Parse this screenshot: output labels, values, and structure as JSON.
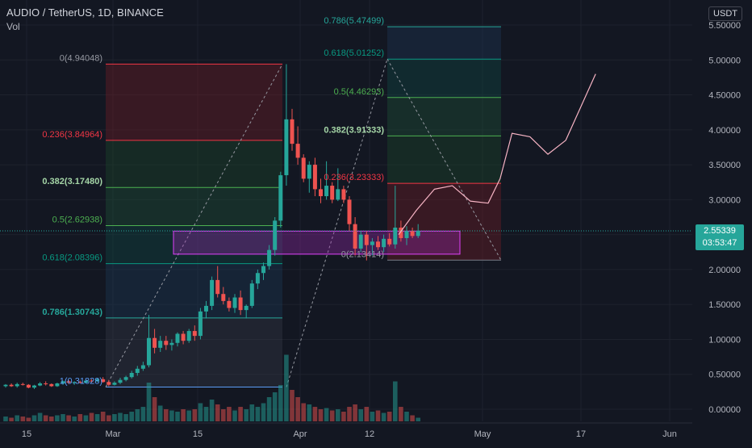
{
  "header": {
    "symbol": "AUDIO / TetherUS, 1D, BINANCE",
    "indicator": "Vol"
  },
  "price_axis": {
    "currency": "USDT",
    "last_price": "2.55339",
    "countdown": "03:53:47"
  },
  "colors": {
    "background": "#131722",
    "up": "#26a69a",
    "down": "#ef5350",
    "grid": "#1e222d",
    "fib_red": "#f23645",
    "fib_green": "#4caf50",
    "fib_teal": "#089981",
    "fib_blue": "#2962ff",
    "rect_pink": "#9c27b0"
  },
  "chart_data": {
    "type": "candlestick",
    "y_ticks": [
      "0.00000",
      "0.50000",
      "1.00000",
      "1.50000",
      "2.00000",
      "2.50000",
      "3.00000",
      "3.50000",
      "4.00000",
      "4.50000",
      "5.00000",
      "5.50000"
    ],
    "ylim": [
      -0.05,
      5.8
    ],
    "x_ticks": [
      "15",
      "Mar",
      "15",
      "Apr",
      "12",
      "May",
      "17",
      "Jun"
    ],
    "grid": true,
    "candles": [
      [
        0.33,
        0.36,
        0.31,
        0.35
      ],
      [
        0.35,
        0.37,
        0.32,
        0.33
      ],
      [
        0.33,
        0.38,
        0.31,
        0.36
      ],
      [
        0.36,
        0.38,
        0.34,
        0.35
      ],
      [
        0.35,
        0.36,
        0.3,
        0.31
      ],
      [
        0.31,
        0.35,
        0.29,
        0.34
      ],
      [
        0.34,
        0.39,
        0.33,
        0.37
      ],
      [
        0.37,
        0.4,
        0.34,
        0.36
      ],
      [
        0.36,
        0.37,
        0.32,
        0.33
      ],
      [
        0.33,
        0.38,
        0.32,
        0.37
      ],
      [
        0.37,
        0.41,
        0.35,
        0.4
      ],
      [
        0.4,
        0.42,
        0.36,
        0.38
      ],
      [
        0.38,
        0.4,
        0.35,
        0.39
      ],
      [
        0.39,
        0.41,
        0.37,
        0.38
      ],
      [
        0.38,
        0.42,
        0.37,
        0.41
      ],
      [
        0.41,
        0.43,
        0.38,
        0.4
      ],
      [
        0.4,
        0.45,
        0.39,
        0.43
      ],
      [
        0.43,
        0.46,
        0.38,
        0.39
      ],
      [
        0.39,
        0.42,
        0.33,
        0.35
      ],
      [
        0.35,
        0.4,
        0.34,
        0.38
      ],
      [
        0.38,
        0.45,
        0.36,
        0.42
      ],
      [
        0.42,
        0.48,
        0.4,
        0.46
      ],
      [
        0.46,
        0.55,
        0.44,
        0.52
      ],
      [
        0.52,
        0.62,
        0.48,
        0.58
      ],
      [
        0.58,
        0.68,
        0.55,
        0.63
      ],
      [
        0.63,
        1.35,
        0.6,
        1.02
      ],
      [
        1.02,
        1.15,
        0.8,
        0.88
      ],
      [
        0.88,
        1.05,
        0.82,
        0.98
      ],
      [
        0.98,
        1.05,
        0.85,
        0.92
      ],
      [
        0.92,
        1.0,
        0.84,
        0.95
      ],
      [
        0.95,
        1.1,
        0.9,
        1.08
      ],
      [
        1.08,
        1.12,
        0.93,
        0.98
      ],
      [
        0.98,
        1.15,
        0.95,
        1.12
      ],
      [
        1.12,
        1.2,
        0.98,
        1.05
      ],
      [
        1.05,
        1.45,
        1.0,
        1.4
      ],
      [
        1.4,
        1.55,
        1.3,
        1.48
      ],
      [
        1.48,
        1.9,
        1.42,
        1.85
      ],
      [
        1.85,
        2.05,
        1.6,
        1.65
      ],
      [
        1.65,
        1.75,
        1.5,
        1.55
      ],
      [
        1.55,
        1.6,
        1.4,
        1.45
      ],
      [
        1.45,
        1.65,
        1.38,
        1.6
      ],
      [
        1.6,
        1.7,
        1.35,
        1.42
      ],
      [
        1.42,
        1.5,
        1.3,
        1.48
      ],
      [
        1.48,
        1.85,
        1.45,
        1.8
      ],
      [
        1.8,
        2.0,
        1.72,
        1.95
      ],
      [
        1.95,
        2.1,
        1.85,
        2.05
      ],
      [
        2.05,
        2.35,
        2.0,
        2.28
      ],
      [
        2.28,
        2.75,
        2.2,
        2.7
      ],
      [
        2.7,
        3.4,
        2.6,
        3.35
      ],
      [
        3.35,
        4.94,
        3.2,
        4.15
      ],
      [
        4.15,
        4.3,
        3.7,
        3.8
      ],
      [
        3.8,
        4.05,
        3.5,
        3.6
      ],
      [
        3.6,
        3.65,
        3.25,
        3.3
      ],
      [
        3.3,
        3.55,
        3.1,
        3.5
      ],
      [
        3.5,
        3.6,
        3.05,
        3.15
      ],
      [
        3.15,
        3.3,
        2.95,
        3.05
      ],
      [
        3.05,
        3.55,
        3.0,
        3.2
      ],
      [
        3.2,
        3.25,
        2.95,
        3.0
      ],
      [
        3.0,
        3.45,
        2.98,
        3.15
      ],
      [
        3.15,
        3.2,
        2.95,
        3.0
      ],
      [
        3.0,
        3.05,
        2.55,
        2.65
      ],
      [
        2.65,
        2.75,
        2.2,
        2.3
      ],
      [
        2.3,
        2.55,
        2.25,
        2.5
      ],
      [
        2.5,
        2.55,
        2.13,
        2.35
      ],
      [
        2.35,
        2.45,
        2.2,
        2.4
      ],
      [
        2.4,
        2.48,
        2.28,
        2.32
      ],
      [
        2.32,
        2.5,
        2.25,
        2.44
      ],
      [
        2.44,
        2.52,
        2.33,
        2.36
      ],
      [
        2.36,
        3.2,
        2.3,
        2.6
      ],
      [
        2.6,
        2.7,
        2.4,
        2.45
      ],
      [
        2.45,
        2.62,
        2.35,
        2.55
      ],
      [
        2.55,
        2.6,
        2.45,
        2.48
      ],
      [
        2.48,
        2.65,
        2.45,
        2.553
      ]
    ],
    "volumes": [
      0.04,
      0.03,
      0.05,
      0.04,
      0.03,
      0.05,
      0.07,
      0.05,
      0.04,
      0.05,
      0.06,
      0.05,
      0.04,
      0.06,
      0.05,
      0.07,
      0.06,
      0.08,
      0.05,
      0.06,
      0.07,
      0.06,
      0.08,
      0.1,
      0.12,
      0.32,
      0.2,
      0.13,
      0.1,
      0.09,
      0.08,
      0.1,
      0.09,
      0.1,
      0.15,
      0.12,
      0.18,
      0.14,
      0.1,
      0.12,
      0.09,
      0.12,
      0.1,
      0.14,
      0.12,
      0.15,
      0.2,
      0.24,
      0.3,
      0.55,
      0.26,
      0.2,
      0.15,
      0.14,
      0.12,
      0.1,
      0.11,
      0.09,
      0.1,
      0.08,
      0.12,
      0.14,
      0.1,
      0.12,
      0.08,
      0.09,
      0.07,
      0.08,
      0.33,
      0.12,
      0.08,
      0.05,
      0.03
    ],
    "fib_retracement_1": {
      "labels": [
        "0(4.94048)",
        "0.236(3.84964)",
        "0.382(3.17480)",
        "0.5(2.62938)",
        "0.618(2.08396)",
        "0.786(1.30743)",
        "1(0.31828)"
      ],
      "values": [
        4.94048,
        3.84964,
        3.1748,
        2.62938,
        2.08396,
        1.30743,
        0.31828
      ]
    },
    "fib_retracement_2": {
      "labels": [
        "0.786(5.47499)",
        "0.618(5.01252)",
        "0.5(4.46293)",
        "0.382(3.91333)",
        "0.236(3.23333)",
        "0(2.13414)"
      ],
      "values": [
        5.47499,
        5.01252,
        4.46293,
        3.91333,
        3.23333,
        2.13414
      ]
    },
    "consolidation_box": {
      "top": 2.55,
      "bottom": 2.22
    },
    "projection_path": [
      [
        2.5,
        0
      ],
      [
        2.85,
        6
      ],
      [
        3.15,
        12
      ],
      [
        3.2,
        18
      ],
      [
        2.98,
        24
      ],
      [
        2.95,
        30
      ],
      [
        3.3,
        34
      ],
      [
        3.95,
        38
      ],
      [
        3.9,
        44
      ],
      [
        3.65,
        50
      ],
      [
        3.85,
        56
      ],
      [
        4.8,
        66
      ]
    ]
  }
}
